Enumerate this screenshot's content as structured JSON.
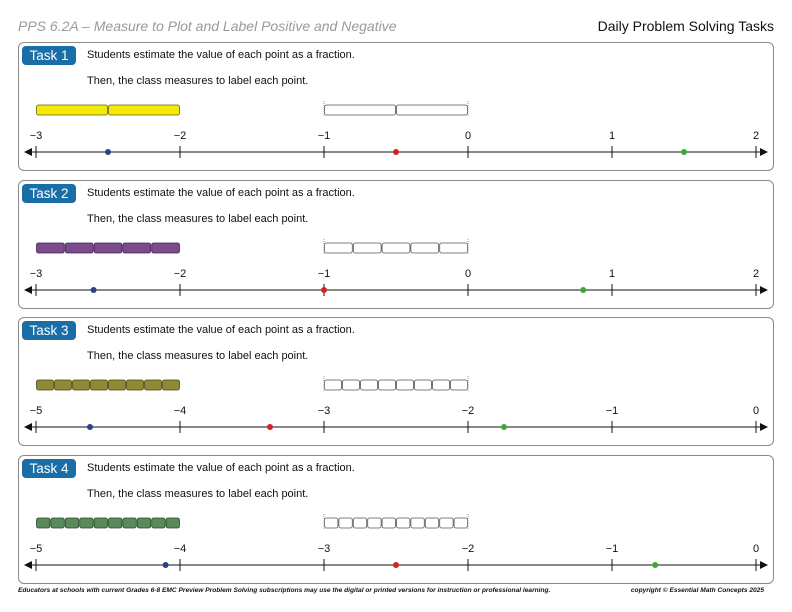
{
  "header": {
    "title": "PPS 6.2A – Measure to Plot and Label Positive and Negative",
    "right_title": "Daily Problem Solving Tasks"
  },
  "tasks": [
    {
      "label": "Task 1",
      "line1": "Students estimate the value of each point as a fraction.",
      "line2": "Then, the class measures to label each point.",
      "tick_labels": [
        "−3",
        "−2",
        "−1",
        "0",
        "1",
        "2"
      ],
      "ticks": [
        -3,
        -2,
        -1,
        0,
        1,
        2
      ],
      "range": [
        -3,
        2
      ],
      "denominator": 2,
      "bar_color": "#f2e80a",
      "bar_stroke": "#6b6600",
      "points": [
        {
          "value": -2.5,
          "color": "#2b3f8f"
        },
        {
          "value": -0.5,
          "color": "#d42020"
        },
        {
          "value": 1.5,
          "color": "#3aaa35"
        }
      ]
    },
    {
      "label": "Task 2",
      "line1": "Students estimate the value of each point as a fraction.",
      "line2": "Then, the class measures to label each point.",
      "tick_labels": [
        "−3",
        "−2",
        "−1",
        "0",
        "1",
        "2"
      ],
      "ticks": [
        -3,
        -2,
        -1,
        0,
        1,
        2
      ],
      "range": [
        -3,
        2
      ],
      "denominator": 5,
      "bar_color": "#7b4b8e",
      "bar_stroke": "#3f2250",
      "points": [
        {
          "value": -2.6,
          "color": "#2b3f8f"
        },
        {
          "value": -1,
          "color": "#d42020"
        },
        {
          "value": 0.8,
          "color": "#3aaa35"
        }
      ]
    },
    {
      "label": "Task 3",
      "line1": "Students estimate the value of each point as a fraction.",
      "line2": "Then, the class measures to label each point.",
      "tick_labels": [
        "−5",
        "−4",
        "−3",
        "−2",
        "−1",
        "0"
      ],
      "ticks": [
        -5,
        -4,
        -3,
        -2,
        -1,
        0
      ],
      "range": [
        -5,
        0
      ],
      "denominator": 8,
      "bar_color": "#8f8a35",
      "bar_stroke": "#4a4715",
      "points": [
        {
          "value": -4.625,
          "color": "#2b3f8f"
        },
        {
          "value": -3.375,
          "color": "#d42020"
        },
        {
          "value": -1.75,
          "color": "#3aaa35"
        }
      ]
    },
    {
      "label": "Task 4",
      "line1": "Students estimate the value of each point as a fraction.",
      "line2": "Then, the class measures to label each point.",
      "tick_labels": [
        "−5",
        "−4",
        "−3",
        "−2",
        "−1",
        "0"
      ],
      "ticks": [
        -5,
        -4,
        -3,
        -2,
        -1,
        0
      ],
      "range": [
        -5,
        0
      ],
      "denominator": 10,
      "bar_color": "#5a8a5a",
      "bar_stroke": "#2c4a2c",
      "points": [
        {
          "value": -4.1,
          "color": "#2b3f8f"
        },
        {
          "value": -2.5,
          "color": "#d42020"
        },
        {
          "value": -0.7,
          "color": "#3aaa35"
        }
      ]
    }
  ],
  "footer": {
    "left": "Educators at schools with current Grades 6-8 EMC Preview Problem Solving subscriptions may use the digital or printed versions for instruction or professional learning.",
    "right": "copyright © Essential Math Concepts 2025"
  }
}
